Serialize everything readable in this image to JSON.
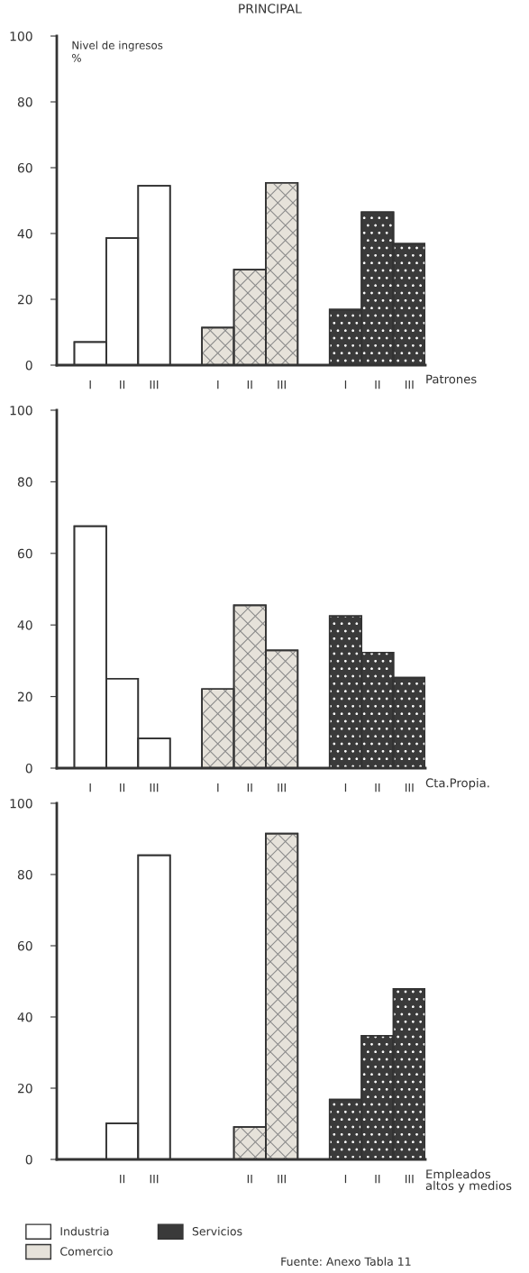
{
  "chart_data": [
    {
      "type": "bar",
      "title": "PRINCIPAL",
      "xlabel": "Patrones",
      "annotations": [
        "Nivel de ingresos\n%"
      ],
      "categories": [
        "I",
        "II",
        "III",
        null,
        "I",
        "II",
        "III",
        null,
        "I",
        "II",
        "III"
      ],
      "series": [
        {
          "color": "#ffffff",
          "values": [
            7.0,
            38.6,
            54.5,
            null,
            null,
            null,
            null,
            null,
            null,
            null,
            null
          ]
        },
        {
          "color": "#e6e2da",
          "values": [
            null,
            null,
            null,
            null,
            11.4,
            29.0,
            55.4,
            null,
            null,
            null,
            null
          ]
        },
        {
          "color": "#3a3a3a",
          "values": [
            null,
            null,
            null,
            null,
            null,
            null,
            null,
            null,
            16.9,
            46.5,
            36.9
          ]
        }
      ],
      "ylim": [
        0,
        100
      ],
      "yticks": [
        0,
        20,
        40,
        60,
        80,
        100
      ],
      "grid": false
    },
    {
      "type": "bar",
      "xlabel": "Cta.Propia.",
      "categories": [
        "I",
        "II",
        "III",
        null,
        "I",
        "II",
        "III",
        null,
        "I",
        "II",
        "III"
      ],
      "series": [
        {
          "color": "#ffffff",
          "values": [
            67.6,
            25.0,
            8.3,
            null,
            null,
            null,
            null,
            null,
            null,
            null,
            null
          ]
        },
        {
          "color": "#e6e2da",
          "values": [
            null,
            null,
            null,
            null,
            22.1,
            45.5,
            32.9,
            null,
            null,
            null,
            null
          ]
        },
        {
          "color": "#3a3a3a",
          "values": [
            null,
            null,
            null,
            null,
            null,
            null,
            null,
            null,
            42.5,
            32.3,
            25.3
          ]
        }
      ],
      "ylim": [
        0,
        100
      ],
      "yticks": [
        0,
        20,
        40,
        60,
        80,
        100
      ],
      "grid": false
    },
    {
      "type": "bar",
      "xlabel": "Empleados\naltos y medios",
      "annotations": [
        "Fuente: Anexo Tabla 11"
      ],
      "legend": "bottom",
      "categories": [
        null,
        "II",
        "III",
        null,
        null,
        "II",
        "III",
        null,
        "I",
        "II",
        "III"
      ],
      "series": [
        {
          "name": "Industria",
          "color": "#ffffff",
          "values": [
            null,
            10.1,
            85.4,
            null,
            null,
            null,
            null,
            null,
            null,
            null,
            null
          ]
        },
        {
          "name": "Comercio",
          "color": "#e6e2da",
          "values": [
            null,
            null,
            null,
            null,
            null,
            9.1,
            91.5,
            null,
            null,
            null,
            null
          ]
        },
        {
          "name": "Servicios",
          "color": "#3a3a3a",
          "values": [
            null,
            null,
            null,
            null,
            null,
            null,
            null,
            null,
            16.8,
            34.7,
            47.9
          ]
        }
      ],
      "ylim": [
        0,
        100
      ],
      "yticks": [
        0,
        20,
        40,
        60,
        80,
        100
      ],
      "grid": false
    }
  ]
}
